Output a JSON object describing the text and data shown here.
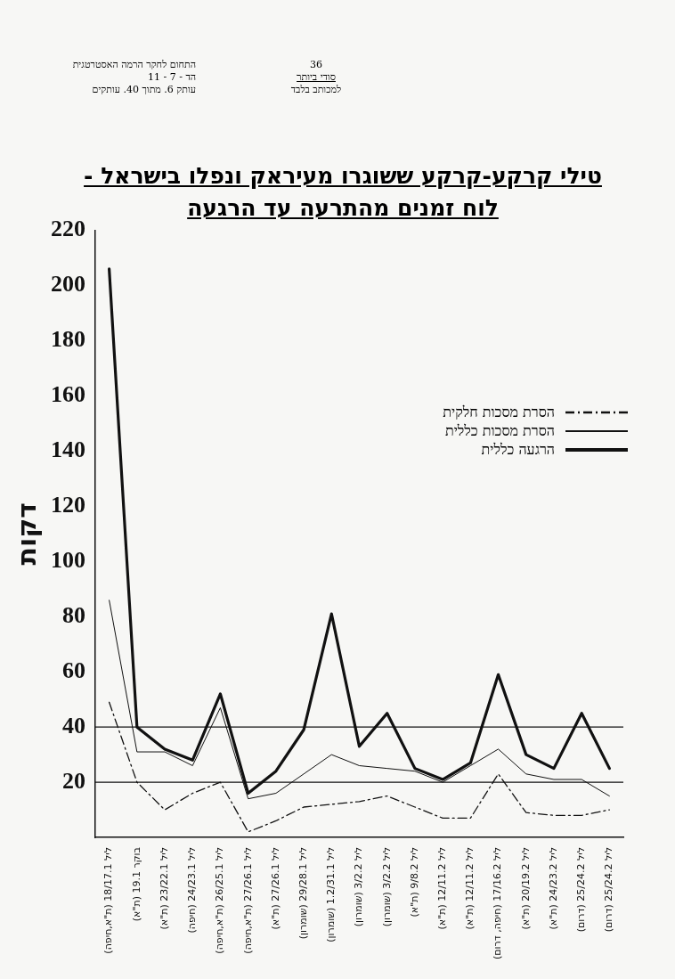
{
  "chart_data": {
    "type": "line",
    "title": "טילי קרקע-קרקע ששוגרו מעיראק ונפלו בישראל -",
    "subtitle": "לוח זמנים מהתרעה עד הרגעה",
    "ylabel": "דקות",
    "annotations": [
      "התחום לחקר הרמה האסטרטגית",
      "הד - 7 - 11",
      "עותק 6. מתוך 40. עותקים",
      "36",
      "סודי ביותר",
      "למכותב בלבד"
    ],
    "categories": [
      "ליל 18/17.1 (ת\"א,חיפה)",
      "בוקר 19.1 (ת\"א)",
      "ליל 23/22.1 (ת\"א)",
      "ליל 24/23.1 (חיפה)",
      "ליל 26/25.1 (ת\"א,חיפה)",
      "ליל 27/26.1 (ת\"א,חיפה)",
      "ליל 27/26.1 (ת\"א)",
      "ליל 29/28.1 (שומרון)",
      "ליל 1.2/31.1 (שומרון)",
      "ליל 3/2.2 (שומרון)",
      "ליל 3/2.2 (שומרון)",
      "ליל 9/8.2 (ת\"א)",
      "ליל 12/11.2 (ת\"א)",
      "ליל 12/11.2 (ת\"א)",
      "ליל 17/16.2 (חיפה, דרום)",
      "ליל 20/19.2 (ת\"א)",
      "ליל 24/23.2 (ת\"א)",
      "ליל 25/24.2 (דרום)",
      "ליל 25/24.2 (דרום)"
    ],
    "series": [
      {
        "name": "הסרת מסכות חלקית",
        "color": "#111111",
        "line_style": "dashed",
        "values": [
          49,
          20,
          10,
          16,
          20,
          2,
          6,
          11,
          12,
          13,
          15,
          11,
          7,
          7,
          23,
          9,
          8,
          8,
          10
        ]
      },
      {
        "name": "הסרת מסכות כללית",
        "color": "#111111",
        "line_style": "solid",
        "values": [
          86,
          31,
          31,
          26,
          47,
          14,
          16,
          23,
          30,
          26,
          25,
          24,
          20,
          26,
          32,
          23,
          21,
          21,
          15
        ]
      },
      {
        "name": "הרגעה כללית",
        "color": "#111111",
        "line_style": "solid",
        "values": [
          206,
          40,
          32,
          28,
          52,
          16,
          24,
          39,
          81,
          33,
          45,
          25,
          21,
          27,
          59,
          30,
          25,
          45,
          25
        ]
      }
    ],
    "ylim": [
      0,
      220
    ],
    "yticks": [
      20,
      40,
      60,
      80,
      100,
      120,
      140,
      160,
      180,
      200,
      220
    ],
    "ref_lines": [
      {
        "axis": "y",
        "value": 40,
        "label": null
      },
      {
        "axis": "y",
        "value": 20,
        "label": null
      }
    ],
    "grid": false,
    "legend": "right",
    "marker": "none"
  }
}
